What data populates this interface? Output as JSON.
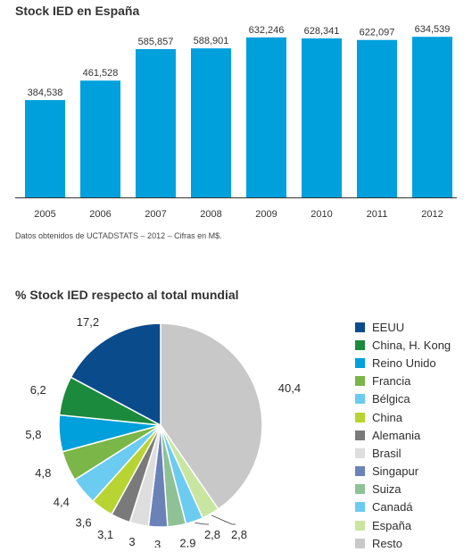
{
  "bar_chart_title": "Stock IED en España",
  "bar_chart_source": "Datos obtenidos de UCTADSTATS – 2012 – Cifras en M$.",
  "pie_chart_title": "% Stock IED respecto al total mundial",
  "colors": {
    "bar": "#00a0dc",
    "baseline": "#333333"
  },
  "chart_data": [
    {
      "type": "bar",
      "title": "Stock IED en España",
      "categories": [
        "2005",
        "2006",
        "2007",
        "2008",
        "2009",
        "2010",
        "2011",
        "2012"
      ],
      "values": [
        384538,
        461528,
        585857,
        588901,
        632246,
        628341,
        622097,
        634539
      ],
      "value_labels": [
        "384,538",
        "461,528",
        "585,857",
        "588,901",
        "632,246",
        "628,341",
        "622,097",
        "634,539"
      ],
      "ylim": [
        0,
        780000
      ],
      "grid": false
    },
    {
      "type": "pie",
      "title": "% Stock IED respecto al total mundial",
      "legend_position": "right",
      "slices": [
        {
          "label": "EEUU",
          "value": 17.2,
          "display": "17,2",
          "color": "#0a4b8c"
        },
        {
          "label": "China, H. Kong",
          "value": 6.2,
          "display": "6,2",
          "color": "#1c8a3c"
        },
        {
          "label": "Reino Unido",
          "value": 5.8,
          "display": "5,8",
          "color": "#00a0dc"
        },
        {
          "label": "Francia",
          "value": 4.8,
          "display": "4,8",
          "color": "#7ab648"
        },
        {
          "label": "Bélgica",
          "value": 4.4,
          "display": "4,4",
          "color": "#6ccbf0"
        },
        {
          "label": "China",
          "value": 3.6,
          "display": "3,6",
          "color": "#b8d433"
        },
        {
          "label": "Alemania",
          "value": 3.1,
          "display": "3,1",
          "color": "#7a7a7a"
        },
        {
          "label": "Brasil",
          "value": 3,
          "display": "3",
          "color": "#dedede"
        },
        {
          "label": "Singapur",
          "value": 3,
          "display": "3",
          "color": "#6a82b8"
        },
        {
          "label": "Suiza",
          "value": 2.9,
          "display": "2,9",
          "color": "#8fc197"
        },
        {
          "label": "Canadá",
          "value": 2.8,
          "display": "2,8",
          "color": "#6ccbf0"
        },
        {
          "label": "España",
          "value": 2.8,
          "display": "2,8",
          "color": "#c8e6a0"
        },
        {
          "label": "Resto",
          "value": 40.4,
          "display": "40,4",
          "color": "#c8c8c8"
        }
      ]
    }
  ]
}
